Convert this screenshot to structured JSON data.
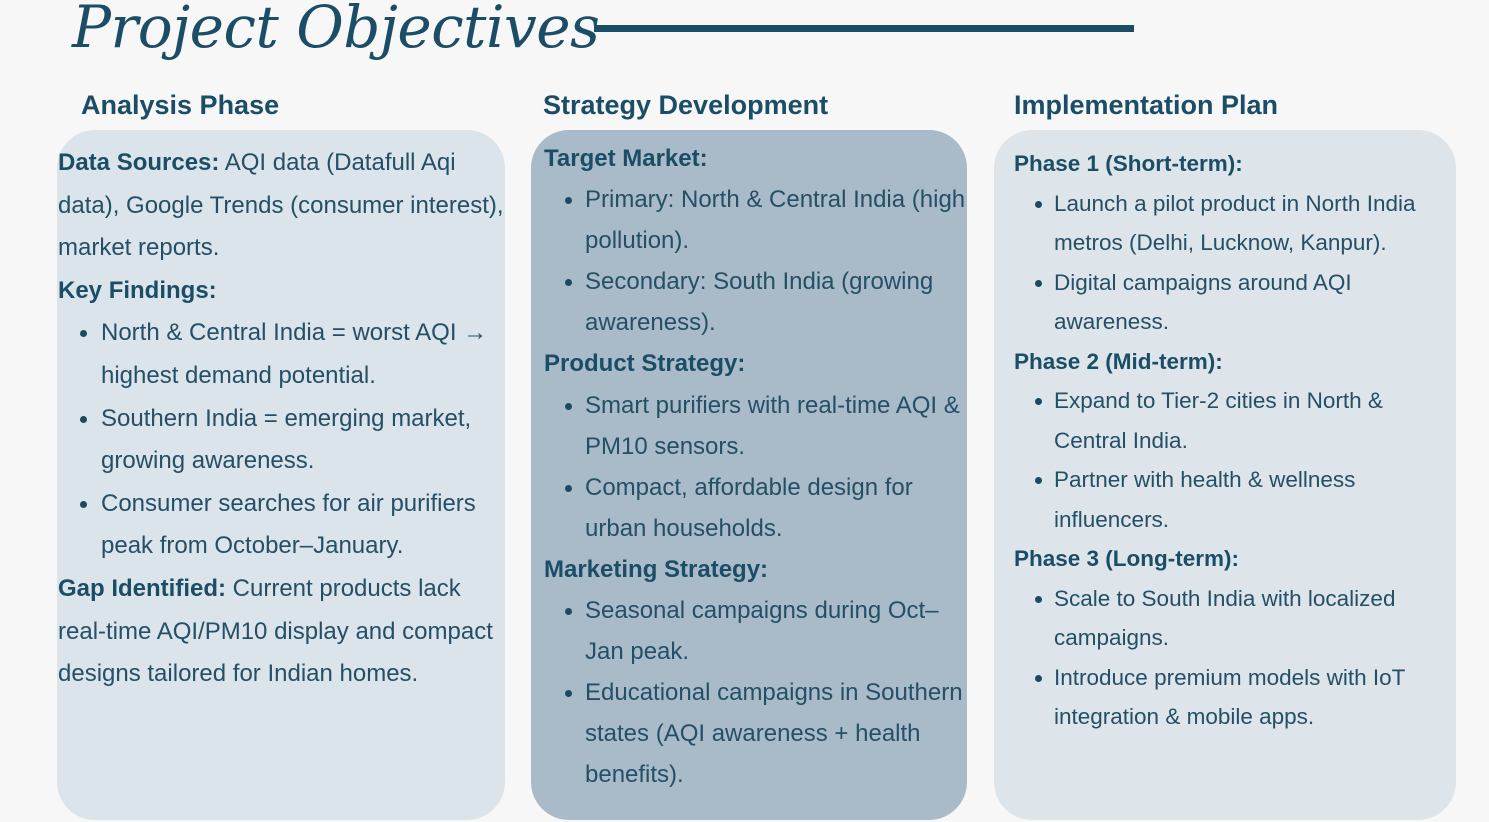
{
  "page": {
    "title": "Project Objectives"
  },
  "columns": {
    "analysis": {
      "heading": "Analysis Phase",
      "data_sources_label": "Data Sources:",
      "data_sources_text": "AQI data (Datafull Aqi data), Google Trends (consumer interest), market reports.",
      "key_findings_label": "Key Findings:",
      "findings": [
        "North & Central India = worst AQI → highest demand potential.",
        "Southern India = emerging market, growing awareness.",
        "Consumer searches for air purifiers peak from October–January."
      ],
      "gap_label": "Gap Identified:",
      "gap_text": "Current products lack real-time AQI/PM10 display and compact designs tailored for Indian homes."
    },
    "strategy": {
      "heading": "Strategy Development",
      "target_label": "Target Market:",
      "target_items": [
        "Primary: North & Central India (high pollution).",
        "Secondary: South India (growing awareness)."
      ],
      "product_label": "Product Strategy:",
      "product_items": [
        "Smart purifiers with real-time AQI & PM10 sensors.",
        "Compact, affordable design for urban households."
      ],
      "marketing_label": "Marketing Strategy:",
      "marketing_items": [
        "Seasonal campaigns during Oct–Jan peak.",
        "Educational campaigns in Southern states (AQI awareness + health benefits)."
      ]
    },
    "implementation": {
      "heading": "Implementation Plan",
      "phase1_label": "Phase 1 (Short-term):",
      "phase1_items": [
        "Launch a pilot product in North India metros (Delhi, Lucknow, Kanpur).",
        "Digital campaigns around AQI awareness."
      ],
      "phase2_label": "Phase 2 (Mid-term):",
      "phase2_items": [
        "Expand to Tier-2 cities in North & Central India.",
        "Partner with health & wellness influencers."
      ],
      "phase3_label": "Phase 3 (Long-term):",
      "phase3_items": [
        "Scale to South India with localized campaigns.",
        "Introduce premium models with IoT integration & mobile apps."
      ]
    }
  },
  "colors": {
    "background": "#f7f7f7",
    "heading_text": "#1b4d66",
    "analysis_card": "#dbe4ea",
    "strategy_card": "#a9bbc8",
    "implementation_card": "#dde5ea"
  }
}
